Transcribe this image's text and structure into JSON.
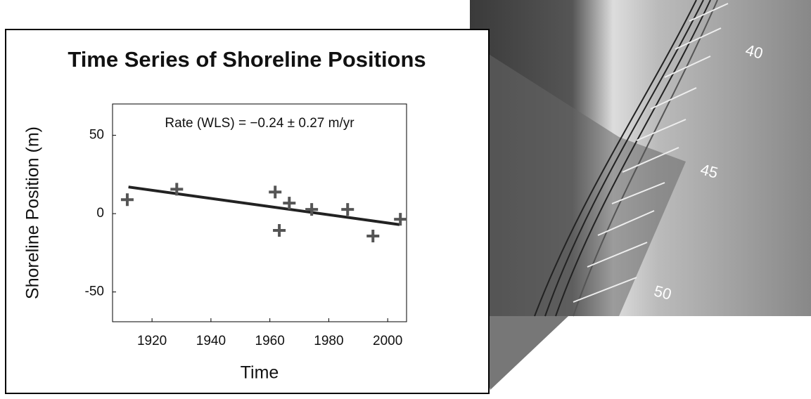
{
  "chart_data": {
    "type": "scatter",
    "title": "Time Series of Shoreline Positions",
    "annotation": "Rate (WLS) = −0.24  ± 0.27 m/yr",
    "x_label": "Time",
    "y_label": "Shoreline Position (m)",
    "x": [
      1911.6,
      1928.4,
      1961.8,
      1963.2,
      1966.6,
      1974.2,
      1986.4,
      1995.0,
      2004.3
    ],
    "values": [
      8.9,
      15.6,
      13.8,
      -10.7,
      6.7,
      2.7,
      2.7,
      -14.3,
      -3.6
    ],
    "color": "#555555",
    "trend": {
      "x": [
        1912,
        2004
      ],
      "values": [
        17,
        -7
      ],
      "color": "#222222"
    },
    "xlim": [
      1906.6,
      2006.4
    ],
    "ylim": [
      -69,
      70
    ],
    "xticks": [
      1920,
      1940,
      1960,
      1980,
      2000
    ],
    "yticks": [
      -50,
      0,
      50
    ],
    "image_labels": [
      "40",
      "45",
      "50"
    ]
  }
}
